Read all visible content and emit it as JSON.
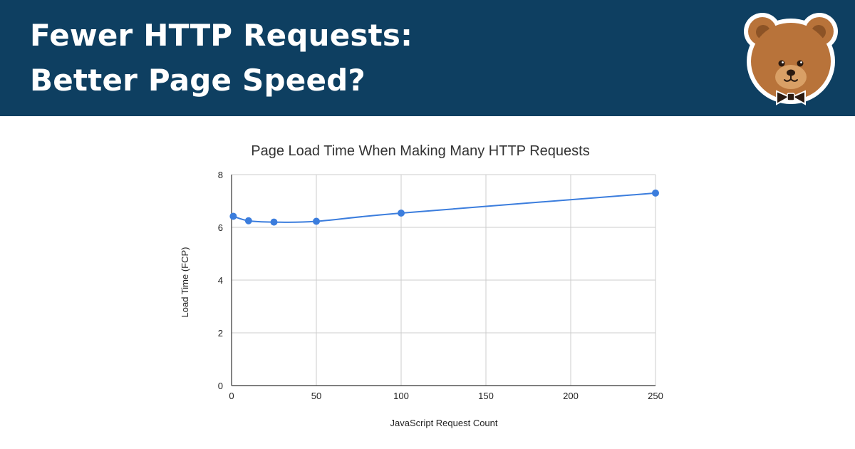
{
  "header": {
    "title_line1": "Fewer HTTP Requests:",
    "title_line2": "Better Page Speed?",
    "logo_icon": "bear-mascot-icon"
  },
  "colors": {
    "banner": "#0e3f61",
    "series": "#3b7ddd",
    "bear_fur": "#b8733a"
  },
  "chart_data": {
    "type": "line",
    "title": "Page Load Time When Making Many HTTP Requests",
    "xlabel": "JavaScript Request Count",
    "ylabel": "Load Time (FCP)",
    "x": [
      1,
      10,
      25,
      50,
      100,
      250
    ],
    "series": [
      {
        "values": [
          6.42,
          6.25,
          6.2,
          6.23,
          6.54,
          7.3
        ]
      }
    ],
    "xlim": [
      0,
      250
    ],
    "ylim": [
      0,
      8
    ],
    "xticks": [
      0,
      50,
      100,
      150,
      200,
      250
    ],
    "yticks": [
      0,
      2,
      4,
      6,
      8
    ],
    "grid": true,
    "legend": "none"
  }
}
